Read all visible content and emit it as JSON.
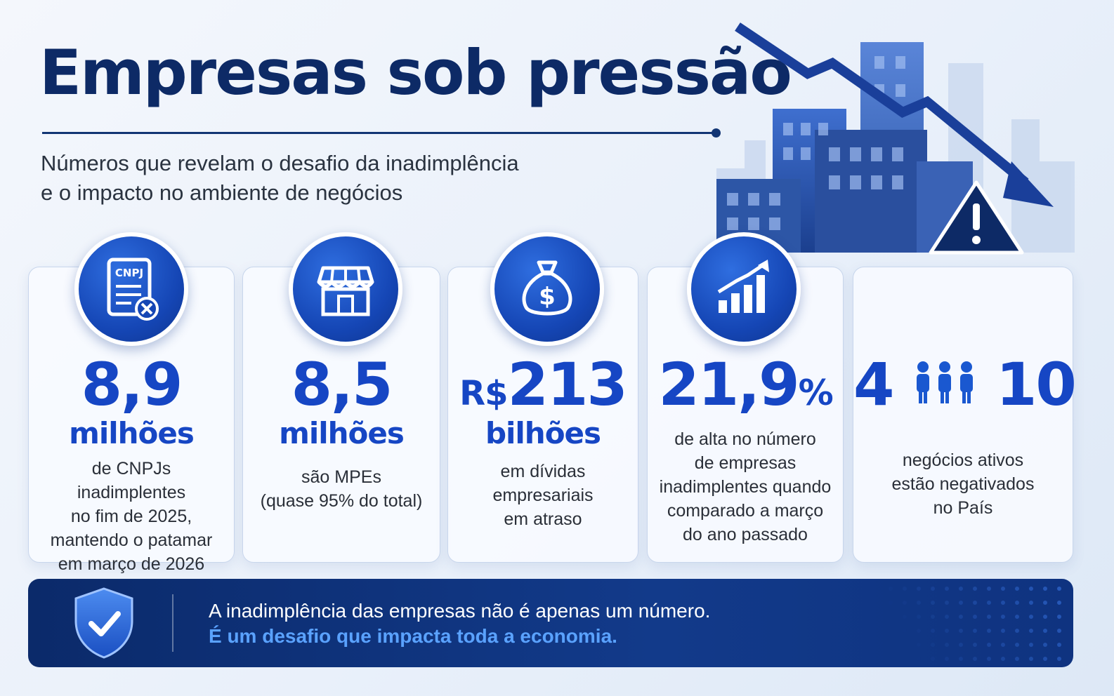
{
  "header": {
    "title": "Empresas sob pressão",
    "subtitle_line1": "Números que revelam o desafio da inadimplência",
    "subtitle_line2": "e o impacto no ambiente de negócios"
  },
  "hero": {
    "illustration": "buildings-with-down-trend-arrow",
    "warning_icon": "warning-triangle-icon"
  },
  "cards": [
    {
      "icon": "cnpj-document-icon",
      "icon_label": "CNPJ",
      "value": "8,9",
      "unit": "milhões",
      "description": [
        "de CNPJs inadimplentes",
        "no fim de 2025,",
        "mantendo o patamar",
        "em março de 2026"
      ]
    },
    {
      "icon": "storefront-icon",
      "value": "8,5",
      "unit": "milhões",
      "description": [
        "são MPEs",
        "(quase 95% do total)"
      ]
    },
    {
      "icon": "money-bag-icon",
      "value_prefix": "R$",
      "value": "213",
      "unit": "bilhões",
      "description": [
        "em dívidas",
        "empresariais",
        "em atraso"
      ]
    },
    {
      "icon": "growth-chart-icon",
      "value": "21,9",
      "value_suffix": "%",
      "description": [
        "de alta no número",
        "de empresas",
        "inadimplentes quando",
        "comparado a março",
        "do ano passado"
      ]
    },
    {
      "icon": "people-icon",
      "value_left": "4",
      "value_right": "10",
      "description": [
        "negócios ativos",
        "estão negativados",
        "no País"
      ]
    }
  ],
  "banner": {
    "icon": "shield-check-icon",
    "line1": "A inadimplência das empresas não é apenas um número.",
    "line2": "É um desafio que impacta toda a economia."
  },
  "colors": {
    "title": "#0d2a66",
    "accent": "#1646c4",
    "banner_bg": "#0b2a6a",
    "banner_highlight": "#5aa2ff"
  }
}
